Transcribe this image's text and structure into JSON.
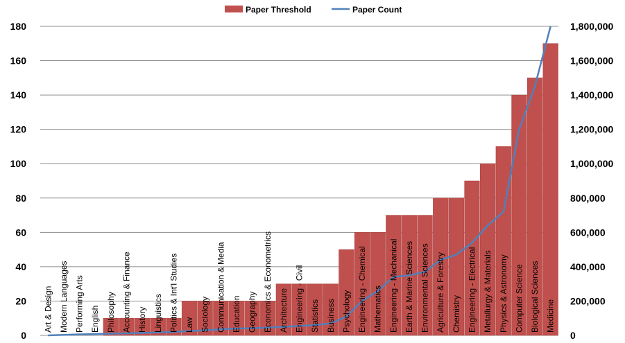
{
  "chart_data": {
    "type": "bar",
    "categories": [
      "Art & Design",
      "Modern Languages",
      "Performing Arts",
      "English",
      "Philosophy",
      "Accounting & Finance",
      "History",
      "Linguistics",
      "Politics & Int'l Studies",
      "Law",
      "Sociology",
      "Communication & Media",
      "Education",
      "Geography",
      "Economics & Econometrics",
      "Architecture",
      "Engineering - Civil",
      "Statistics",
      "Business",
      "Psychology",
      "Engineering - Chemical",
      "Mathematics",
      "Engineering - Mechanical",
      "Earth & Marine Sciences",
      "Environmental Sciences",
      "Agriculture & Forestry",
      "Chemistry",
      "Engineering - Electrical",
      "Metallurgy & Materials",
      "Physics & Astronomy",
      "Computer Science",
      "Biological Sciences",
      "Medicine"
    ],
    "series": [
      {
        "name": "Paper Threshold",
        "type": "bar",
        "axis": "left",
        "color": "#c0504d",
        "values": [
          0,
          0,
          0,
          0,
          10,
          10,
          10,
          10,
          10,
          20,
          20,
          20,
          20,
          20,
          20,
          30,
          30,
          30,
          30,
          50,
          60,
          60,
          70,
          70,
          70,
          80,
          80,
          90,
          100,
          110,
          140,
          150,
          170
        ]
      },
      {
        "name": "Paper Count",
        "type": "line",
        "axis": "right",
        "color": "#4f81bd",
        "values": [
          0,
          3000,
          6000,
          8000,
          10000,
          12000,
          14000,
          17000,
          20000,
          25000,
          30000,
          35000,
          40000,
          42000,
          45000,
          50000,
          55000,
          60000,
          70000,
          110000,
          200000,
          260000,
          340000,
          350000,
          370000,
          440000,
          470000,
          540000,
          640000,
          720000,
          1200000,
          1450000,
          1800000
        ]
      }
    ],
    "y_left": {
      "min": 0,
      "max": 180,
      "ticks": [
        "0",
        "20",
        "40",
        "60",
        "80",
        "100",
        "120",
        "140",
        "160",
        "180"
      ]
    },
    "y_right": {
      "min": 0,
      "max": 1800000,
      "ticks": [
        "0",
        "200,000",
        "400,000",
        "600,000",
        "800,000",
        "1,000,000",
        "1,200,000",
        "1,400,000",
        "1,600,000",
        "1,800,000"
      ]
    },
    "grid": true,
    "legend": "top-center"
  }
}
